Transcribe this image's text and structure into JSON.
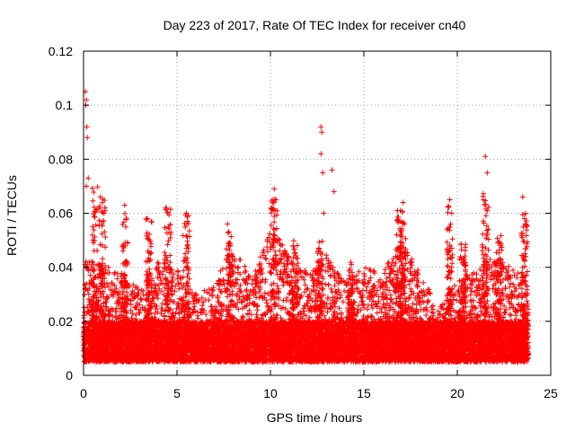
{
  "chart_data": {
    "type": "scatter",
    "title": "Day 223 of 2017, Rate Of TEC Index for receiver cn40",
    "xlabel": "GPS time / hours",
    "ylabel": "ROTI / TECUs",
    "xlim": [
      0,
      25
    ],
    "ylim": [
      0,
      0.12
    ],
    "xticks": [
      0,
      5,
      10,
      15,
      20,
      25
    ],
    "xtick_labels": [
      "0",
      "5",
      "10",
      "15",
      "20",
      "25"
    ],
    "yticks": [
      0,
      0.02,
      0.04,
      0.06,
      0.08,
      0.1,
      0.12
    ],
    "ytick_labels": [
      "0",
      "0.02",
      "0.04",
      "0.06",
      "0.08",
      "0.1",
      "0.12"
    ],
    "grid": true,
    "marker": "plus",
    "color": "#ff0000",
    "series": [
      {
        "name": "ROTI",
        "x_range": [
          0,
          23.8
        ],
        "baseline_band": [
          0.005,
          0.02
        ],
        "notable_points": [
          {
            "x": 0.1,
            "y": 0.105
          },
          {
            "x": 0.15,
            "y": 0.102
          },
          {
            "x": 0.12,
            "y": 0.1
          },
          {
            "x": 0.18,
            "y": 0.092
          },
          {
            "x": 0.2,
            "y": 0.088
          },
          {
            "x": 0.15,
            "y": 0.07
          },
          {
            "x": 0.25,
            "y": 0.073
          },
          {
            "x": 0.9,
            "y": 0.066
          },
          {
            "x": 1.1,
            "y": 0.06
          },
          {
            "x": 2.2,
            "y": 0.063
          },
          {
            "x": 3.4,
            "y": 0.058
          },
          {
            "x": 4.4,
            "y": 0.062
          },
          {
            "x": 5.5,
            "y": 0.06
          },
          {
            "x": 7.7,
            "y": 0.056
          },
          {
            "x": 10.2,
            "y": 0.069
          },
          {
            "x": 10.3,
            "y": 0.065
          },
          {
            "x": 12.7,
            "y": 0.092
          },
          {
            "x": 12.75,
            "y": 0.09
          },
          {
            "x": 12.7,
            "y": 0.082
          },
          {
            "x": 12.8,
            "y": 0.075
          },
          {
            "x": 12.85,
            "y": 0.06
          },
          {
            "x": 13.3,
            "y": 0.076
          },
          {
            "x": 13.4,
            "y": 0.068
          },
          {
            "x": 16.8,
            "y": 0.061
          },
          {
            "x": 17.1,
            "y": 0.064
          },
          {
            "x": 19.6,
            "y": 0.065
          },
          {
            "x": 19.7,
            "y": 0.06
          },
          {
            "x": 21.5,
            "y": 0.081
          },
          {
            "x": 21.6,
            "y": 0.075
          },
          {
            "x": 21.4,
            "y": 0.065
          },
          {
            "x": 23.5,
            "y": 0.066
          },
          {
            "x": 23.6,
            "y": 0.058
          }
        ],
        "activity_envelope": [
          {
            "x": 0,
            "peak": 0.045
          },
          {
            "x": 1,
            "peak": 0.042
          },
          {
            "x": 2,
            "peak": 0.04
          },
          {
            "x": 3,
            "peak": 0.033
          },
          {
            "x": 4,
            "peak": 0.045
          },
          {
            "x": 5,
            "peak": 0.04
          },
          {
            "x": 6,
            "peak": 0.03
          },
          {
            "x": 7,
            "peak": 0.033
          },
          {
            "x": 8,
            "peak": 0.05
          },
          {
            "x": 9,
            "peak": 0.035
          },
          {
            "x": 10,
            "peak": 0.055
          },
          {
            "x": 11,
            "peak": 0.045
          },
          {
            "x": 12,
            "peak": 0.038
          },
          {
            "x": 13,
            "peak": 0.045
          },
          {
            "x": 14,
            "peak": 0.035
          },
          {
            "x": 15,
            "peak": 0.04
          },
          {
            "x": 16,
            "peak": 0.038
          },
          {
            "x": 17,
            "peak": 0.05
          },
          {
            "x": 18,
            "peak": 0.038
          },
          {
            "x": 19,
            "peak": 0.025
          },
          {
            "x": 20,
            "peak": 0.035
          },
          {
            "x": 21,
            "peak": 0.04
          },
          {
            "x": 22,
            "peak": 0.045
          },
          {
            "x": 23,
            "peak": 0.04
          },
          {
            "x": 23.8,
            "peak": 0.035
          }
        ],
        "spike_peaks": [
          {
            "x": 0.6,
            "y": 0.07
          },
          {
            "x": 1.0,
            "y": 0.066
          },
          {
            "x": 2.2,
            "y": 0.06
          },
          {
            "x": 3.5,
            "y": 0.058
          },
          {
            "x": 4.5,
            "y": 0.062
          },
          {
            "x": 5.5,
            "y": 0.06
          },
          {
            "x": 7.8,
            "y": 0.055
          },
          {
            "x": 10.2,
            "y": 0.068
          },
          {
            "x": 11.3,
            "y": 0.05
          },
          {
            "x": 12.6,
            "y": 0.05
          },
          {
            "x": 14.3,
            "y": 0.042
          },
          {
            "x": 16.9,
            "y": 0.062
          },
          {
            "x": 17.1,
            "y": 0.06
          },
          {
            "x": 19.6,
            "y": 0.063
          },
          {
            "x": 20.3,
            "y": 0.05
          },
          {
            "x": 21.5,
            "y": 0.07
          },
          {
            "x": 22.2,
            "y": 0.052
          },
          {
            "x": 23.6,
            "y": 0.06
          }
        ]
      }
    ]
  }
}
